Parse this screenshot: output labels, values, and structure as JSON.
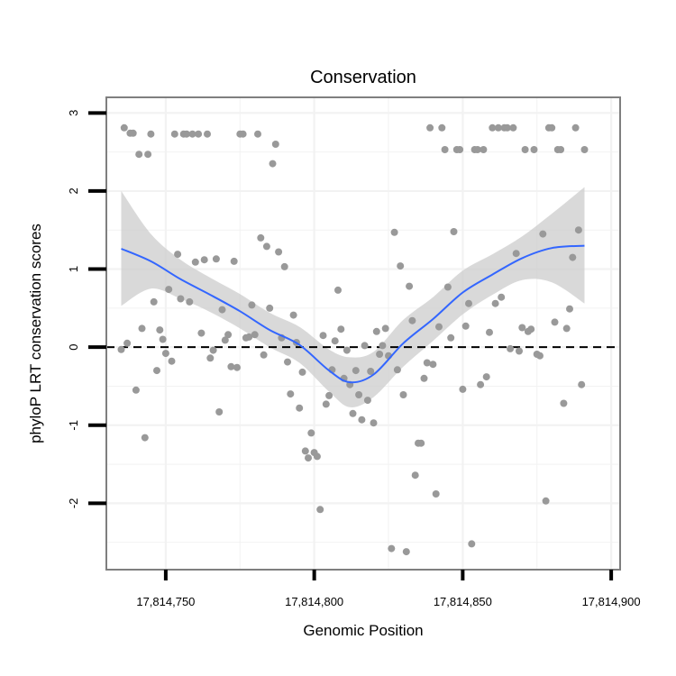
{
  "chart_data": {
    "type": "scatter",
    "title": "Conservation",
    "xlabel": "Genomic Position",
    "ylabel": "phyloP LRT conservation scores",
    "xlim": [
      17814730,
      17814903
    ],
    "ylim": [
      -2.85,
      3.2
    ],
    "x_ticks": [
      17814750,
      17814800,
      17814850,
      17814900
    ],
    "x_tick_labels": [
      "17,814,750",
      "17,814,800",
      "17,814,850",
      "17,814,900"
    ],
    "y_ticks": [
      -2,
      -1,
      0,
      1,
      2,
      3
    ],
    "y_tick_labels": [
      "-2",
      "-1",
      "0",
      "1",
      "2",
      "3"
    ],
    "grid": true,
    "reference_line": {
      "y": 0,
      "style": "dashed"
    },
    "colors": {
      "points": "#999999",
      "smooth": "#3366ff",
      "band": "#cccccc",
      "frame": "#7f7f7f",
      "grid": "#f2f2f2"
    },
    "points": [
      {
        "x": 17814736,
        "y": 2.81
      },
      {
        "x": 17814737,
        "y": 0.05
      },
      {
        "x": 17814735,
        "y": -0.03
      },
      {
        "x": 17814738,
        "y": 2.74
      },
      {
        "x": 17814739,
        "y": 2.74
      },
      {
        "x": 17814740,
        "y": -0.55
      },
      {
        "x": 17814741,
        "y": 2.47
      },
      {
        "x": 17814742,
        "y": 0.24
      },
      {
        "x": 17814743,
        "y": -1.16
      },
      {
        "x": 17814744,
        "y": 2.47
      },
      {
        "x": 17814745,
        "y": 2.73
      },
      {
        "x": 17814746,
        "y": 0.58
      },
      {
        "x": 17814747,
        "y": -0.3
      },
      {
        "x": 17814748,
        "y": 0.22
      },
      {
        "x": 17814749,
        "y": 0.1
      },
      {
        "x": 17814750,
        "y": -0.08
      },
      {
        "x": 17814751,
        "y": 0.74
      },
      {
        "x": 17814752,
        "y": -0.18
      },
      {
        "x": 17814753,
        "y": 2.73
      },
      {
        "x": 17814754,
        "y": 1.19
      },
      {
        "x": 17814755,
        "y": 0.62
      },
      {
        "x": 17814756,
        "y": 2.73
      },
      {
        "x": 17814757,
        "y": 2.73
      },
      {
        "x": 17814758,
        "y": 0.58
      },
      {
        "x": 17814759,
        "y": 2.73
      },
      {
        "x": 17814760,
        "y": 1.09
      },
      {
        "x": 17814761,
        "y": 2.73
      },
      {
        "x": 17814762,
        "y": 0.18
      },
      {
        "x": 17814763,
        "y": 1.12
      },
      {
        "x": 17814764,
        "y": 2.73
      },
      {
        "x": 17814765,
        "y": -0.14
      },
      {
        "x": 17814766,
        "y": -0.04
      },
      {
        "x": 17814767,
        "y": 1.13
      },
      {
        "x": 17814768,
        "y": -0.83
      },
      {
        "x": 17814769,
        "y": 0.48
      },
      {
        "x": 17814770,
        "y": 0.09
      },
      {
        "x": 17814771,
        "y": 0.16
      },
      {
        "x": 17814772,
        "y": -0.25
      },
      {
        "x": 17814773,
        "y": 1.1
      },
      {
        "x": 17814774,
        "y": -0.26
      },
      {
        "x": 17814775,
        "y": 2.73
      },
      {
        "x": 17814776,
        "y": 2.73
      },
      {
        "x": 17814777,
        "y": 0.12
      },
      {
        "x": 17814778,
        "y": 0.13
      },
      {
        "x": 17814779,
        "y": 0.54
      },
      {
        "x": 17814780,
        "y": 0.16
      },
      {
        "x": 17814781,
        "y": 2.73
      },
      {
        "x": 17814782,
        "y": 1.4
      },
      {
        "x": 17814783,
        "y": -0.1
      },
      {
        "x": 17814784,
        "y": 1.29
      },
      {
        "x": 17814785,
        "y": 0.5
      },
      {
        "x": 17814786,
        "y": 2.35
      },
      {
        "x": 17814787,
        "y": 2.6
      },
      {
        "x": 17814788,
        "y": 1.22
      },
      {
        "x": 17814789,
        "y": 0.12
      },
      {
        "x": 17814790,
        "y": 1.03
      },
      {
        "x": 17814791,
        "y": -0.19
      },
      {
        "x": 17814792,
        "y": -0.6
      },
      {
        "x": 17814793,
        "y": 0.41
      },
      {
        "x": 17814794,
        "y": 0.06
      },
      {
        "x": 17814795,
        "y": -0.78
      },
      {
        "x": 17814796,
        "y": -0.32
      },
      {
        "x": 17814797,
        "y": -1.33
      },
      {
        "x": 17814798,
        "y": -1.42
      },
      {
        "x": 17814799,
        "y": -1.1
      },
      {
        "x": 17814800,
        "y": -1.35
      },
      {
        "x": 17814801,
        "y": -1.4
      },
      {
        "x": 17814802,
        "y": -2.08
      },
      {
        "x": 17814803,
        "y": 0.15
      },
      {
        "x": 17814804,
        "y": -0.73
      },
      {
        "x": 17814805,
        "y": -0.62
      },
      {
        "x": 17814806,
        "y": -0.29
      },
      {
        "x": 17814807,
        "y": 0.08
      },
      {
        "x": 17814808,
        "y": 0.73
      },
      {
        "x": 17814809,
        "y": 0.23
      },
      {
        "x": 17814810,
        "y": -0.4
      },
      {
        "x": 17814811,
        "y": -0.04
      },
      {
        "x": 17814812,
        "y": -0.48
      },
      {
        "x": 17814813,
        "y": -0.85
      },
      {
        "x": 17814814,
        "y": -0.3
      },
      {
        "x": 17814815,
        "y": -0.61
      },
      {
        "x": 17814816,
        "y": -0.93
      },
      {
        "x": 17814817,
        "y": 0.02
      },
      {
        "x": 17814818,
        "y": -0.68
      },
      {
        "x": 17814819,
        "y": -0.31
      },
      {
        "x": 17814820,
        "y": -0.97
      },
      {
        "x": 17814821,
        "y": 0.2
      },
      {
        "x": 17814822,
        "y": -0.09
      },
      {
        "x": 17814823,
        "y": 0.02
      },
      {
        "x": 17814824,
        "y": 0.24
      },
      {
        "x": 17814825,
        "y": -0.11
      },
      {
        "x": 17814826,
        "y": -2.58
      },
      {
        "x": 17814827,
        "y": 1.47
      },
      {
        "x": 17814828,
        "y": -0.29
      },
      {
        "x": 17814829,
        "y": 1.04
      },
      {
        "x": 17814830,
        "y": -0.61
      },
      {
        "x": 17814831,
        "y": -2.62
      },
      {
        "x": 17814832,
        "y": 0.78
      },
      {
        "x": 17814833,
        "y": 0.34
      },
      {
        "x": 17814834,
        "y": -1.64
      },
      {
        "x": 17814835,
        "y": -1.23
      },
      {
        "x": 17814836,
        "y": -1.23
      },
      {
        "x": 17814837,
        "y": -0.4
      },
      {
        "x": 17814838,
        "y": -0.2
      },
      {
        "x": 17814839,
        "y": 2.81
      },
      {
        "x": 17814840,
        "y": -0.22
      },
      {
        "x": 17814841,
        "y": -1.88
      },
      {
        "x": 17814842,
        "y": 0.26
      },
      {
        "x": 17814843,
        "y": 2.81
      },
      {
        "x": 17814844,
        "y": 2.53
      },
      {
        "x": 17814845,
        "y": 0.77
      },
      {
        "x": 17814846,
        "y": 0.12
      },
      {
        "x": 17814847,
        "y": 1.48
      },
      {
        "x": 17814848,
        "y": 2.53
      },
      {
        "x": 17814849,
        "y": 2.53
      },
      {
        "x": 17814850,
        "y": -0.54
      },
      {
        "x": 17814851,
        "y": 0.27
      },
      {
        "x": 17814852,
        "y": 0.56
      },
      {
        "x": 17814853,
        "y": -2.52
      },
      {
        "x": 17814854,
        "y": 2.53
      },
      {
        "x": 17814855,
        "y": 2.53
      },
      {
        "x": 17814856,
        "y": -0.48
      },
      {
        "x": 17814857,
        "y": 2.53
      },
      {
        "x": 17814858,
        "y": -0.38
      },
      {
        "x": 17814859,
        "y": 0.19
      },
      {
        "x": 17814860,
        "y": 2.81
      },
      {
        "x": 17814861,
        "y": 0.56
      },
      {
        "x": 17814862,
        "y": 2.81
      },
      {
        "x": 17814863,
        "y": 0.64
      },
      {
        "x": 17814864,
        "y": 2.81
      },
      {
        "x": 17814865,
        "y": 2.81
      },
      {
        "x": 17814866,
        "y": -0.02
      },
      {
        "x": 17814867,
        "y": 2.81
      },
      {
        "x": 17814868,
        "y": 1.2
      },
      {
        "x": 17814869,
        "y": -0.05
      },
      {
        "x": 17814870,
        "y": 0.25
      },
      {
        "x": 17814871,
        "y": 2.53
      },
      {
        "x": 17814872,
        "y": 0.2
      },
      {
        "x": 17814873,
        "y": 0.23
      },
      {
        "x": 17814874,
        "y": 2.53
      },
      {
        "x": 17814875,
        "y": -0.09
      },
      {
        "x": 17814876,
        "y": -0.11
      },
      {
        "x": 17814877,
        "y": 1.45
      },
      {
        "x": 17814878,
        "y": -1.97
      },
      {
        "x": 17814879,
        "y": 2.81
      },
      {
        "x": 17814880,
        "y": 2.81
      },
      {
        "x": 17814881,
        "y": 0.32
      },
      {
        "x": 17814882,
        "y": 2.53
      },
      {
        "x": 17814883,
        "y": 2.53
      },
      {
        "x": 17814884,
        "y": -0.72
      },
      {
        "x": 17814885,
        "y": 0.24
      },
      {
        "x": 17814886,
        "y": 0.49
      },
      {
        "x": 17814887,
        "y": 1.15
      },
      {
        "x": 17814888,
        "y": 2.81
      },
      {
        "x": 17814889,
        "y": 1.5
      },
      {
        "x": 17814890,
        "y": -0.48
      },
      {
        "x": 17814891,
        "y": 2.53
      }
    ],
    "smooth": {
      "x": [
        17814735,
        17814745,
        17814755,
        17814765,
        17814775,
        17814785,
        17814795,
        17814805,
        17814812,
        17814820,
        17814830,
        17814840,
        17814850,
        17814860,
        17814870,
        17814880,
        17814891
      ],
      "y": [
        1.26,
        1.1,
        0.87,
        0.67,
        0.46,
        0.22,
        0.03,
        -0.3,
        -0.45,
        -0.35,
        0.05,
        0.36,
        0.7,
        0.93,
        1.14,
        1.27,
        1.3
      ],
      "lower": [
        0.53,
        0.75,
        0.62,
        0.45,
        0.24,
        0.0,
        -0.2,
        -0.57,
        -0.77,
        -0.64,
        -0.25,
        0.08,
        0.42,
        0.67,
        0.86,
        0.83,
        0.56
      ],
      "upper": [
        2.0,
        1.45,
        1.12,
        0.89,
        0.68,
        0.44,
        0.26,
        -0.03,
        -0.13,
        -0.06,
        0.35,
        0.64,
        0.98,
        1.19,
        1.42,
        1.71,
        2.05
      ]
    }
  }
}
